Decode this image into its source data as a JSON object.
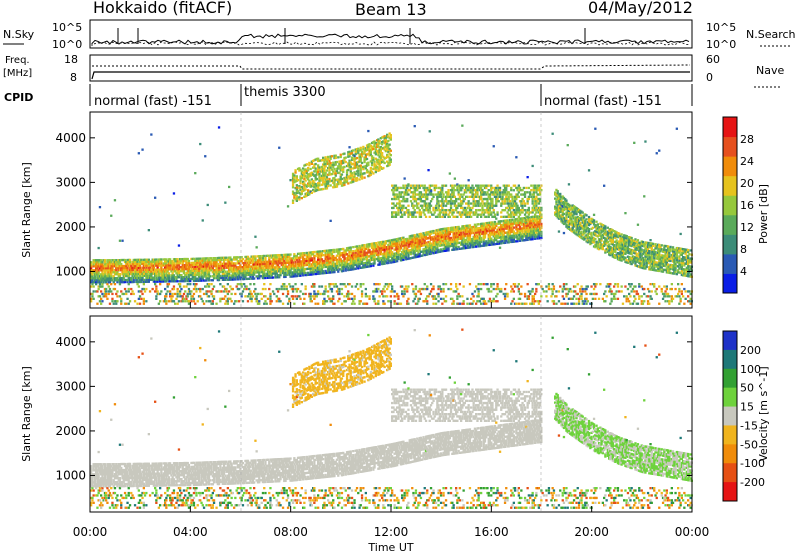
{
  "header": {
    "title": "Hokkaido (fitACF)",
    "beam": "Beam 13",
    "date": "04/May/2012"
  },
  "nsky_panel": {
    "left_label": "N.Sky",
    "right_label": "N.Search",
    "left_ticks": [
      "10^5",
      "10^0"
    ],
    "right_ticks": [
      "10^5",
      "10^0"
    ]
  },
  "freq_panel": {
    "left_label_1": "Freq.",
    "left_label_2": "[MHz]",
    "right_label": "Nave",
    "left_ticks": [
      "18",
      "8"
    ],
    "right_ticks": [
      "60",
      "0"
    ]
  },
  "cpid": {
    "label": "CPID",
    "segments": [
      {
        "label": "normal (fast) -151",
        "start_hour": 0,
        "end_hour": 6
      },
      {
        "label": "themis 3300",
        "start_hour": 6,
        "end_hour": 18
      },
      {
        "label": "normal (fast) -151",
        "start_hour": 18,
        "end_hour": 24
      }
    ]
  },
  "chart_data": [
    {
      "type": "heatmap",
      "name": "power",
      "xlabel": "",
      "ylabel": "Slant Range [km]",
      "xlim": [
        0,
        24
      ],
      "ylim": [
        180,
        4580
      ],
      "y_ticks": [
        1000,
        2000,
        3000,
        4000
      ],
      "y_tick_labels": [
        "1000",
        "2000",
        "3000",
        "4000"
      ],
      "colorbar": {
        "label": "Power [dB]",
        "range": [
          0,
          32
        ],
        "ticks": [
          4,
          8,
          12,
          16,
          20,
          24,
          28
        ],
        "tick_labels": [
          "4",
          "8",
          "12",
          "16",
          "20",
          "24",
          "28"
        ],
        "colors": [
          "#0a1ee6",
          "#2a5ab4",
          "#3c8c78",
          "#5aaa5a",
          "#96c83c",
          "#e6c31e",
          "#f08c0a",
          "#e6501e",
          "#e61414"
        ]
      },
      "features": [
        {
          "feature": "strong-band",
          "t": [
            0.5,
            2,
            4,
            6,
            8,
            10,
            12,
            14,
            16,
            18
          ],
          "range_km": [
            1050,
            1060,
            1080,
            1120,
            1180,
            1300,
            1500,
            1750,
            1900,
            2050
          ],
          "power_db": 26
        },
        {
          "feature": "upper-echo",
          "t": [
            8,
            9,
            10,
            11,
            12
          ],
          "range_km": [
            3000,
            3300,
            3400,
            3600,
            3900
          ],
          "power_db": 18
        },
        {
          "feature": "post-18-echo",
          "t": [
            18.5,
            19,
            20,
            21,
            22,
            23,
            24
          ],
          "range_km": [
            2600,
            2300,
            1900,
            1600,
            1400,
            1300,
            1200
          ],
          "power_db": 14
        }
      ]
    },
    {
      "type": "heatmap",
      "name": "velocity",
      "xlabel": "Time UT",
      "ylabel": "Slant Range [km]",
      "xlim": [
        0,
        24
      ],
      "ylim": [
        180,
        4580
      ],
      "x_ticks": [
        0,
        4,
        8,
        12,
        16,
        20,
        24
      ],
      "x_tick_labels": [
        "00:00",
        "04:00",
        "08:00",
        "12:00",
        "16:00",
        "20:00",
        "00:00"
      ],
      "y_ticks": [
        1000,
        2000,
        3000,
        4000
      ],
      "y_tick_labels": [
        "1000",
        "2000",
        "3000",
        "4000"
      ],
      "colorbar": {
        "label": "Velocity [m s^-1]",
        "ticks": [
          200,
          100,
          50,
          15,
          -15,
          -50,
          -100,
          -200
        ],
        "tick_labels": [
          "200",
          "100",
          "50",
          "15",
          "-15",
          "-50",
          "-100",
          "-200"
        ],
        "colors": [
          "#1e32c8",
          "#1e7878",
          "#32a032",
          "#6ed23c",
          "#c8c8be",
          "#f0b41e",
          "#f08c0a",
          "#e65014",
          "#e61414"
        ]
      },
      "features": [
        {
          "feature": "ground-scatter",
          "t": [
            0.5,
            4,
            8,
            12,
            16,
            18
          ],
          "range_km": [
            1050,
            1080,
            1200,
            1600,
            2000,
            2100
          ],
          "velocity": 0
        },
        {
          "feature": "post-18-flow",
          "t": [
            18.5,
            19,
            20,
            21,
            22
          ],
          "range_km": [
            2500,
            2200,
            1700,
            1500,
            1350
          ],
          "velocity": 30
        }
      ]
    }
  ]
}
